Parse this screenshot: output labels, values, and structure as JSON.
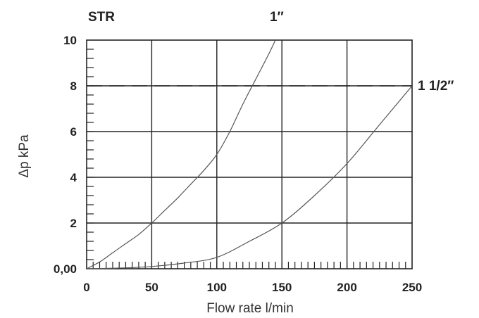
{
  "chart_data": {
    "type": "line",
    "title": "STR",
    "xlabel": "Flow rate l/min",
    "ylabel": "Δp kPa",
    "xlim": [
      0,
      250
    ],
    "ylim": [
      0,
      10
    ],
    "x_ticks": [
      "0",
      "50",
      "100",
      "150",
      "200",
      "250"
    ],
    "y_ticks": [
      "0,00",
      "2",
      "4",
      "6",
      "8",
      "10"
    ],
    "grid": true,
    "series": [
      {
        "name": "1″",
        "x": [
          0,
          10,
          20,
          30,
          40,
          50,
          60,
          70,
          80,
          90,
          100,
          110,
          120,
          130,
          140,
          145
        ],
        "y": [
          0,
          0.3,
          0.7,
          1.1,
          1.5,
          2.0,
          2.55,
          3.1,
          3.7,
          4.3,
          5.0,
          6.0,
          7.2,
          8.3,
          9.4,
          10.0
        ]
      },
      {
        "name": "1 1/2″",
        "x": [
          0,
          25,
          50,
          75,
          100,
          125,
          150,
          175,
          200,
          225,
          250
        ],
        "y": [
          0,
          0.03,
          0.1,
          0.25,
          0.5,
          1.2,
          2.0,
          3.2,
          4.6,
          6.3,
          8.0
        ]
      }
    ],
    "reference_line": {
      "y": 8
    }
  }
}
